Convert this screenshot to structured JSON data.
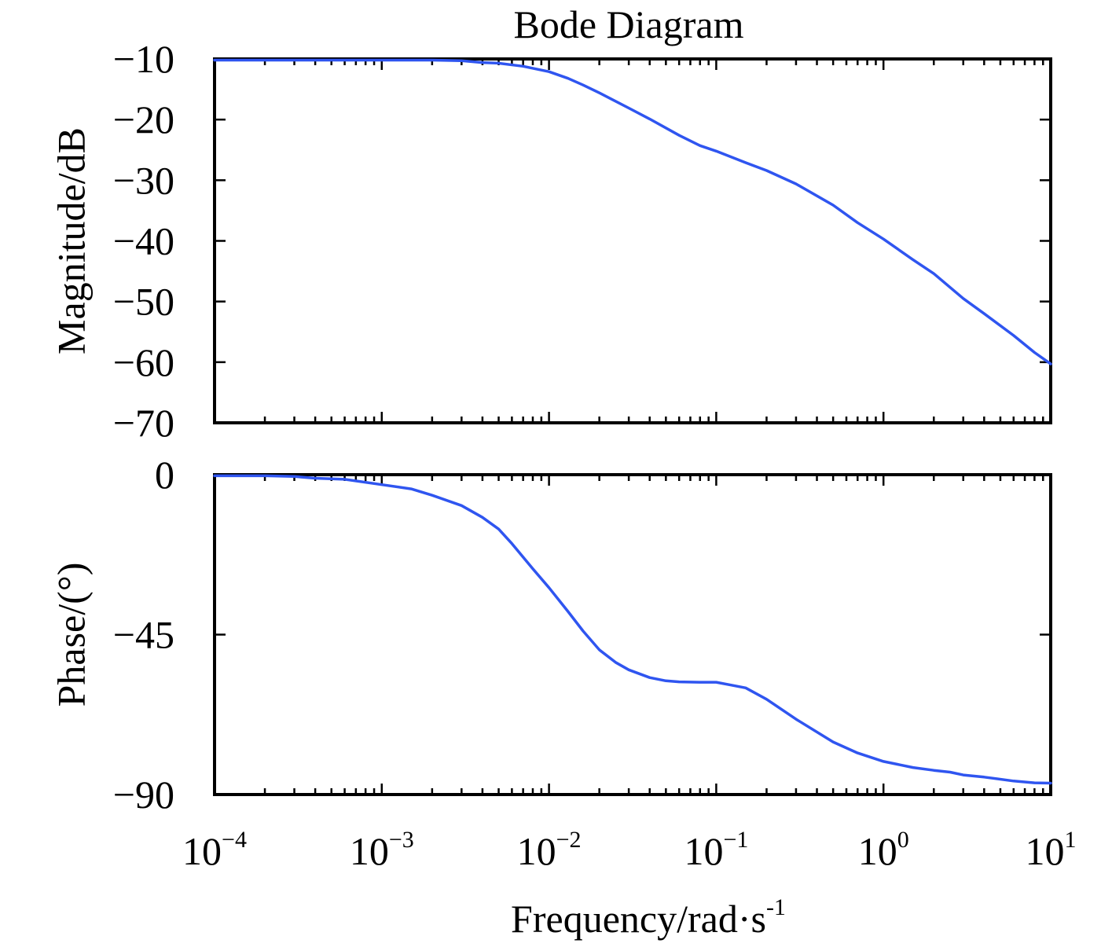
{
  "chart_data": [
    {
      "type": "line",
      "title": "Bode Diagram",
      "ylabel": "Magnitude/dB",
      "xscale": "log",
      "xlim": [
        0.0001,
        10
      ],
      "ylim": [
        -70,
        -10
      ],
      "yticks": [
        -10,
        -20,
        -30,
        -40,
        -50,
        -60,
        -70
      ],
      "ytick_labels": [
        "−10",
        "−20",
        "−30",
        "−40",
        "−50",
        "−60",
        "−70"
      ],
      "grid": false,
      "series": [
        {
          "color": "#2f55f0",
          "x": [
            0.0001,
            0.0002,
            0.0005,
            0.001,
            0.002,
            0.003,
            0.004,
            0.005,
            0.007,
            0.01,
            0.013,
            0.016,
            0.02,
            0.03,
            0.04,
            0.06,
            0.08,
            0.1,
            0.15,
            0.2,
            0.3,
            0.5,
            0.7,
            1,
            1.5,
            2,
            3,
            4,
            6,
            8,
            10
          ],
          "y": [
            -10.2,
            -10.2,
            -10.2,
            -10.2,
            -10.2,
            -10.3,
            -10.6,
            -10.7,
            -11.2,
            -12.1,
            -13.2,
            -14.3,
            -15.6,
            -18.1,
            -19.9,
            -22.6,
            -24.3,
            -25.2,
            -27.1,
            -28.4,
            -30.6,
            -34.1,
            -37.0,
            -39.7,
            -43.1,
            -45.4,
            -49.5,
            -52.0,
            -55.6,
            -58.4,
            -60.3
          ]
        }
      ]
    },
    {
      "type": "line",
      "xlabel": "Frequency/rad·s",
      "xlabel_sup": "-1",
      "ylabel": "Phase/(°)",
      "xscale": "log",
      "xlim": [
        0.0001,
        10
      ],
      "ylim": [
        -90,
        0
      ],
      "yticks": [
        0,
        -45,
        -90
      ],
      "ytick_labels": [
        "0",
        "−45",
        "−90"
      ],
      "xtick_bases": [
        "10",
        "10",
        "10",
        "10",
        "10",
        "10"
      ],
      "xtick_exps": [
        "−4",
        "−3",
        "−2",
        "−1",
        "0",
        "1"
      ],
      "grid": false,
      "series": [
        {
          "color": "#2f55f0",
          "x": [
            0.0001,
            0.0002,
            0.0003,
            0.0004,
            0.0006,
            0.001,
            0.0015,
            0.002,
            0.003,
            0.004,
            0.005,
            0.006,
            0.008,
            0.01,
            0.013,
            0.016,
            0.02,
            0.025,
            0.03,
            0.04,
            0.05,
            0.06,
            0.08,
            0.1,
            0.12,
            0.15,
            0.2,
            0.3,
            0.5,
            0.7,
            1,
            1.5,
            2,
            2.5,
            3,
            4,
            6,
            8,
            10
          ],
          "y": [
            -0.3,
            -0.3,
            -0.5,
            -1.0,
            -1.3,
            -2.8,
            -4.0,
            -5.8,
            -8.7,
            -12.0,
            -15.3,
            -19.4,
            -26.5,
            -31.8,
            -38.5,
            -44.0,
            -49.3,
            -52.8,
            -54.9,
            -57.1,
            -58.0,
            -58.3,
            -58.4,
            -58.4,
            -59.1,
            -60.0,
            -63.2,
            -68.8,
            -75.2,
            -78.3,
            -80.7,
            -82.4,
            -83.2,
            -83.7,
            -84.5,
            -85.1,
            -86.2,
            -86.7,
            -86.8
          ]
        }
      ]
    }
  ]
}
